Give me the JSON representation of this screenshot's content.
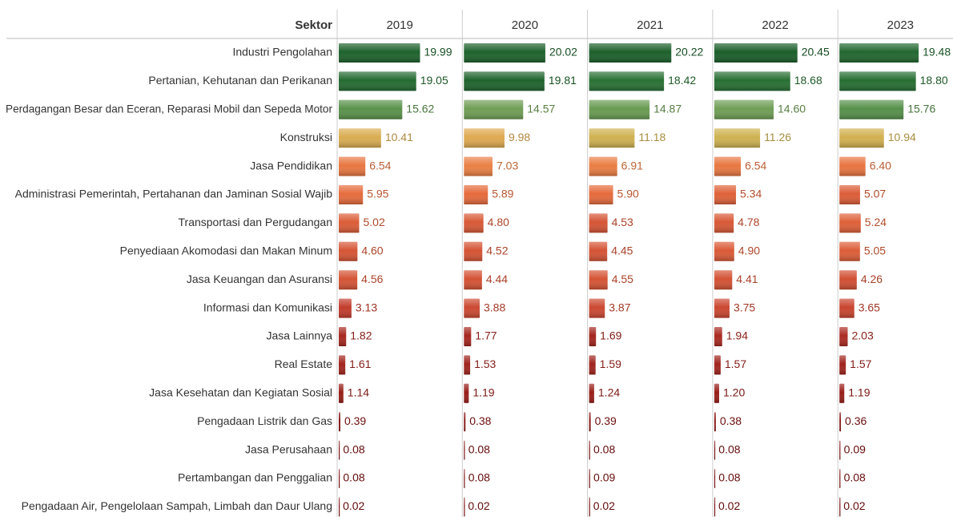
{
  "chart_data": {
    "type": "bar",
    "orientation": "horizontal",
    "category_label": "Sektor",
    "categories": [
      "Industri Pengolahan",
      "Pertanian, Kehutanan dan Perikanan",
      "Perdagangan Besar dan Eceran, Reparasi Mobil dan Sepeda Motor",
      "Konstruksi",
      "Jasa Pendidikan",
      "Administrasi Pemerintah, Pertahanan dan Jaminan Sosial Wajib",
      "Transportasi dan Pergudangan",
      "Penyediaan Akomodasi dan Makan Minum",
      "Jasa Keuangan dan Asuransi",
      "Informasi dan Komunikasi",
      "Jasa Lainnya",
      "Real Estate",
      "Jasa Kesehatan dan Kegiatan Sosial",
      "Pengadaan Listrik dan Gas",
      "Jasa Perusahaan",
      "Pertambangan dan Penggalian",
      "Pengadaan Air, Pengelolaan Sampah, Limbah dan Daur Ulang"
    ],
    "xlim": [
      0,
      30
    ],
    "palette": [
      "#7d0c0c",
      "#c0392b",
      "#e66a3c",
      "#f0a050",
      "#c8b550",
      "#6f9e55",
      "#2f7a38",
      "#1a5e2a"
    ],
    "series": [
      {
        "name": "2019",
        "values": [
          19.99,
          19.05,
          15.62,
          10.41,
          6.54,
          5.95,
          5.02,
          4.6,
          4.56,
          3.13,
          1.82,
          1.61,
          1.14,
          0.39,
          0.08,
          0.08,
          0.02
        ],
        "value_labels": [
          "19.99",
          "19.05",
          "15.62",
          "10.41",
          "6.54",
          "5.95",
          "5.02",
          "4.60",
          "4.56",
          "3.13",
          "1.82",
          "1.61",
          "1.14",
          "0.39",
          "0.08",
          "0.08",
          "0.02"
        ]
      },
      {
        "name": "2020",
        "values": [
          20.02,
          19.81,
          14.57,
          9.98,
          7.03,
          5.89,
          4.8,
          4.52,
          4.44,
          3.88,
          1.77,
          1.53,
          1.19,
          0.38,
          0.08,
          0.08,
          0.02
        ],
        "value_labels": [
          "20.02",
          "19.81",
          "14.57",
          "9.98",
          "7.03",
          "5.89",
          "4.80",
          "4.52",
          "4.44",
          "3.88",
          "1.77",
          "1.53",
          "1.19",
          "0.38",
          "0.08",
          "0.08",
          "0.02"
        ]
      },
      {
        "name": "2021",
        "values": [
          20.22,
          18.42,
          14.87,
          11.18,
          6.91,
          5.9,
          4.53,
          4.45,
          4.55,
          3.87,
          1.69,
          1.59,
          1.24,
          0.39,
          0.08,
          0.09,
          0.02
        ],
        "value_labels": [
          "20.22",
          "18.42",
          "14.87",
          "11.18",
          "6.91",
          "5.90",
          "4.53",
          "4.45",
          "4.55",
          "3.87",
          "1.69",
          "1.59",
          "1.24",
          "0.39",
          "0.08",
          "0.09",
          "0.02"
        ]
      },
      {
        "name": "2022",
        "values": [
          20.45,
          18.68,
          14.6,
          11.26,
          6.54,
          5.34,
          4.78,
          4.9,
          4.41,
          3.75,
          1.94,
          1.57,
          1.2,
          0.38,
          0.08,
          0.08,
          0.02
        ],
        "value_labels": [
          "20.45",
          "18.68",
          "14.60",
          "11.26",
          "6.54",
          "5.34",
          "4.78",
          "4.90",
          "4.41",
          "3.75",
          "1.94",
          "1.57",
          "1.20",
          "0.38",
          "0.08",
          "0.08",
          "0.02"
        ]
      },
      {
        "name": "2023",
        "values": [
          19.48,
          18.8,
          15.76,
          10.94,
          6.4,
          5.07,
          5.24,
          5.05,
          4.26,
          3.65,
          2.03,
          1.57,
          1.19,
          0.36,
          0.09,
          0.08,
          0.02
        ],
        "value_labels": [
          "19.48",
          "18.80",
          "15.76",
          "10.94",
          "6.40",
          "5.07",
          "5.24",
          "5.05",
          "4.26",
          "3.65",
          "2.03",
          "1.57",
          "1.19",
          "0.36",
          "0.09",
          "0.08",
          "0.02"
        ]
      }
    ]
  }
}
